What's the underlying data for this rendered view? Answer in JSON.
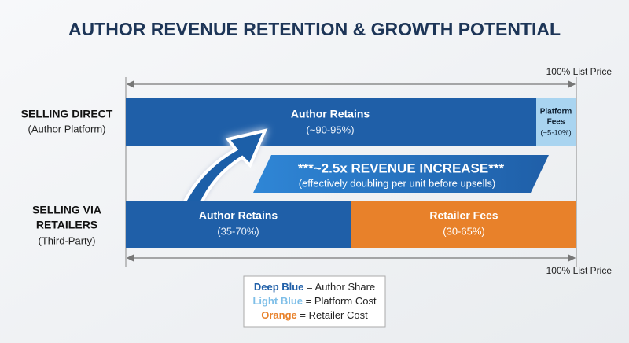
{
  "title": "AUTHOR REVENUE RETENTION & GROWTH POTENTIAL",
  "axis_label_top": "100% List Price",
  "axis_label_bottom": "100% List Price",
  "rows": [
    {
      "label": [
        "SELLING DIRECT",
        "(Author Platform)"
      ],
      "segments": [
        {
          "label": [
            "Author Retains",
            "(~90-95%)"
          ]
        },
        {
          "label": [
            "Platform",
            "Fees",
            "(~5-10%)"
          ]
        }
      ]
    },
    {
      "label": [
        "SELLING VIA",
        "RETAILERS",
        "(Third-Party)"
      ],
      "segments": [
        {
          "label": [
            "Author Retains",
            "(35-70%)"
          ]
        },
        {
          "label": [
            "Retailer Fees",
            "(30-65%)"
          ]
        }
      ]
    }
  ],
  "banner": {
    "headline": "***~2.5x REVENUE INCREASE***",
    "subline": "(effectively doubling per unit before upsells)"
  },
  "legend": [
    {
      "key": "Deep Blue",
      "text": "= Author Share"
    },
    {
      "key": "Light Blue",
      "text": "= Platform Cost"
    },
    {
      "key": "Orange",
      "text": "= Retailer Cost"
    }
  ]
}
